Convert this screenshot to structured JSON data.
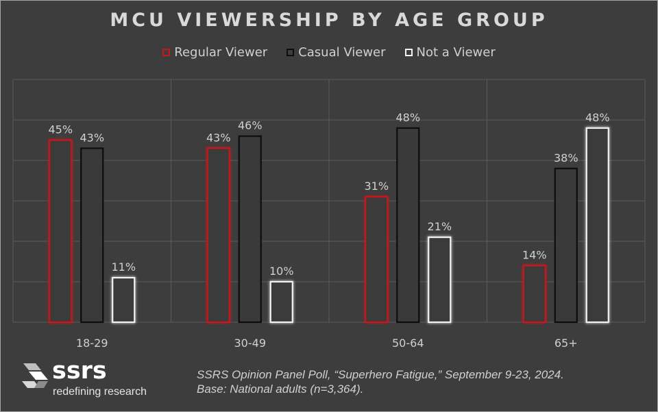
{
  "title": "MCU VIEWERSHIP BY AGE GROUP",
  "colors": {
    "background": "#3d3d3d",
    "regular": "#c8161d",
    "casual": "#0d0d0d",
    "not_viewer": "#f2f2f2",
    "text": "#d9d9d9",
    "grid": "#5a5a5a"
  },
  "legend": [
    {
      "label": "Regular Viewer",
      "color": "#c8161d"
    },
    {
      "label": "Casual Viewer",
      "color": "#0d0d0d"
    },
    {
      "label": "Not a Viewer",
      "color": "#f2f2f2"
    }
  ],
  "chart_data": {
    "type": "bar",
    "title": "MCU VIEWERSHIP BY AGE GROUP",
    "categories": [
      "18-29",
      "30-49",
      "50-64",
      "65+"
    ],
    "series": [
      {
        "name": "Regular Viewer",
        "values": [
          45,
          43,
          31,
          14
        ]
      },
      {
        "name": "Casual Viewer",
        "values": [
          43,
          46,
          48,
          38
        ]
      },
      {
        "name": "Not a Viewer",
        "values": [
          11,
          10,
          21,
          48
        ]
      }
    ],
    "value_suffix": "%",
    "ylim": [
      0,
      60
    ],
    "grid": true,
    "legend_position": "top"
  },
  "footer": {
    "source_line1": "SSRS Opinion Panel Poll, “Superhero Fatigue,” September 9-23, 2024.",
    "source_line2": "Base: National adults (n=3,364).",
    "logo_word": "ssrs",
    "logo_tagline": "redefining research"
  }
}
